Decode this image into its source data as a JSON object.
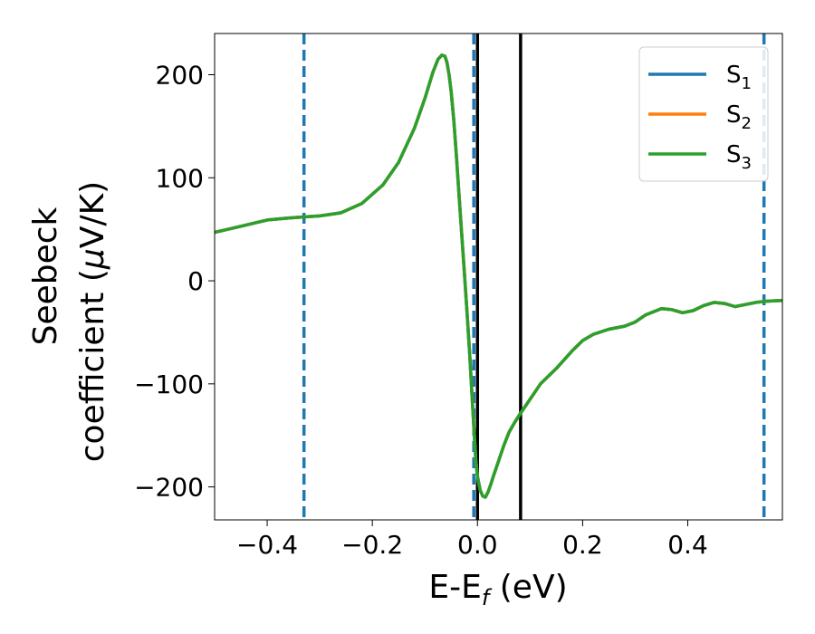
{
  "chart_data": {
    "type": "line",
    "title": "",
    "xlabel": {
      "base": "E-E",
      "sub": "f",
      "suffix": " (eV)"
    },
    "ylabel": {
      "line1": "Seebeck",
      "line2_prefix": "coefficient  (",
      "mu": "μ",
      "line2_suffix": "V/K)"
    },
    "xlim": [
      -0.5,
      0.58
    ],
    "ylim": [
      -232,
      240
    ],
    "xticks": [
      -0.4,
      -0.2,
      0.0,
      0.2,
      0.4
    ],
    "xtick_labels": [
      "−0.4",
      "−0.2",
      "0.0",
      "0.2",
      "0.4"
    ],
    "yticks": [
      200,
      100,
      0,
      -100,
      -200
    ],
    "ytick_labels": [
      "200",
      "100",
      "0",
      "−100",
      "−200"
    ],
    "grid": false,
    "legend_position": "top-right",
    "series": [
      {
        "name": "S",
        "sub": "1",
        "color": "#1f77b4"
      },
      {
        "name": "S",
        "sub": "2",
        "color": "#ff7f0e"
      },
      {
        "name": "S",
        "sub": "3",
        "color": "#2ca02c"
      }
    ],
    "curve": {
      "x": [
        -0.5,
        -0.45,
        -0.4,
        -0.36,
        -0.33,
        -0.3,
        -0.26,
        -0.22,
        -0.18,
        -0.15,
        -0.12,
        -0.1,
        -0.085,
        -0.075,
        -0.068,
        -0.062,
        -0.058,
        -0.054,
        -0.05,
        -0.045,
        -0.04,
        -0.035,
        -0.03,
        -0.025,
        -0.02,
        -0.015,
        -0.01,
        -0.006,
        -0.003,
        0.0,
        0.005,
        0.01,
        0.015,
        0.02,
        0.025,
        0.03,
        0.04,
        0.05,
        0.06,
        0.07,
        0.08,
        0.1,
        0.12,
        0.15,
        0.18,
        0.2,
        0.22,
        0.25,
        0.28,
        0.3,
        0.32,
        0.35,
        0.37,
        0.39,
        0.41,
        0.43,
        0.45,
        0.47,
        0.49,
        0.51,
        0.53,
        0.545,
        0.56,
        0.58
      ],
      "y": [
        47,
        53,
        59,
        61,
        62,
        63,
        66,
        75,
        93,
        115,
        148,
        177,
        202,
        215,
        219,
        218,
        212,
        200,
        183,
        155,
        120,
        82,
        45,
        8,
        -30,
        -70,
        -115,
        -150,
        -175,
        -190,
        -203,
        -209,
        -210,
        -205,
        -198,
        -190,
        -175,
        -160,
        -147,
        -138,
        -130,
        -115,
        -100,
        -85,
        -68,
        -58,
        -52,
        -47,
        -44,
        -40,
        -33,
        -27,
        -28,
        -31,
        -29,
        -24,
        -21,
        -22,
        -25,
        -23,
        -21,
        -20,
        -19.5,
        -19
      ]
    },
    "reference_lines": [
      {
        "x": -0.33,
        "style": "dashed",
        "color": "#1f77b4"
      },
      {
        "x": -0.007,
        "style": "dashed",
        "color": "#1f77b4"
      },
      {
        "x": 0.545,
        "style": "dashed",
        "color": "#1f77b4"
      },
      {
        "x": 0.0,
        "style": "solid",
        "color": "#000000"
      },
      {
        "x": 0.082,
        "style": "solid",
        "color": "#000000"
      }
    ]
  }
}
